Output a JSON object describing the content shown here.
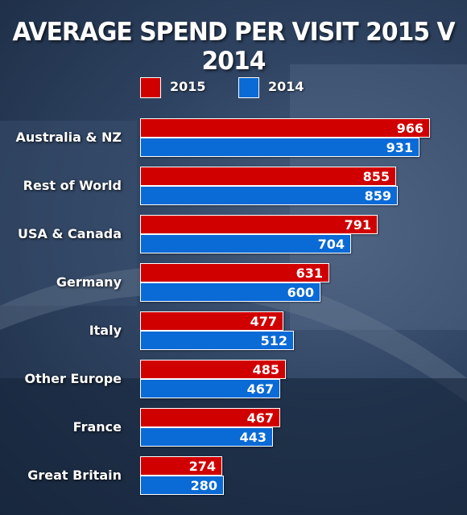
{
  "chart_data": {
    "type": "bar",
    "orientation": "horizontal",
    "title": "AVERAGE SPEND PER VISIT 2015 V 2014",
    "categories": [
      "Australia & NZ",
      "Rest of World",
      "USA & Canada",
      "Germany",
      "Italy",
      "Other Europe",
      "France",
      "Great Britain"
    ],
    "series": [
      {
        "name": "2015",
        "color": "#d10000",
        "values": [
          966,
          855,
          791,
          631,
          477,
          485,
          467,
          274
        ]
      },
      {
        "name": "2014",
        "color": "#0a6ad6",
        "values": [
          931,
          859,
          704,
          600,
          512,
          467,
          443,
          280
        ]
      }
    ],
    "xlim": [
      0,
      1000
    ],
    "grid": false,
    "legend_position": "top"
  }
}
